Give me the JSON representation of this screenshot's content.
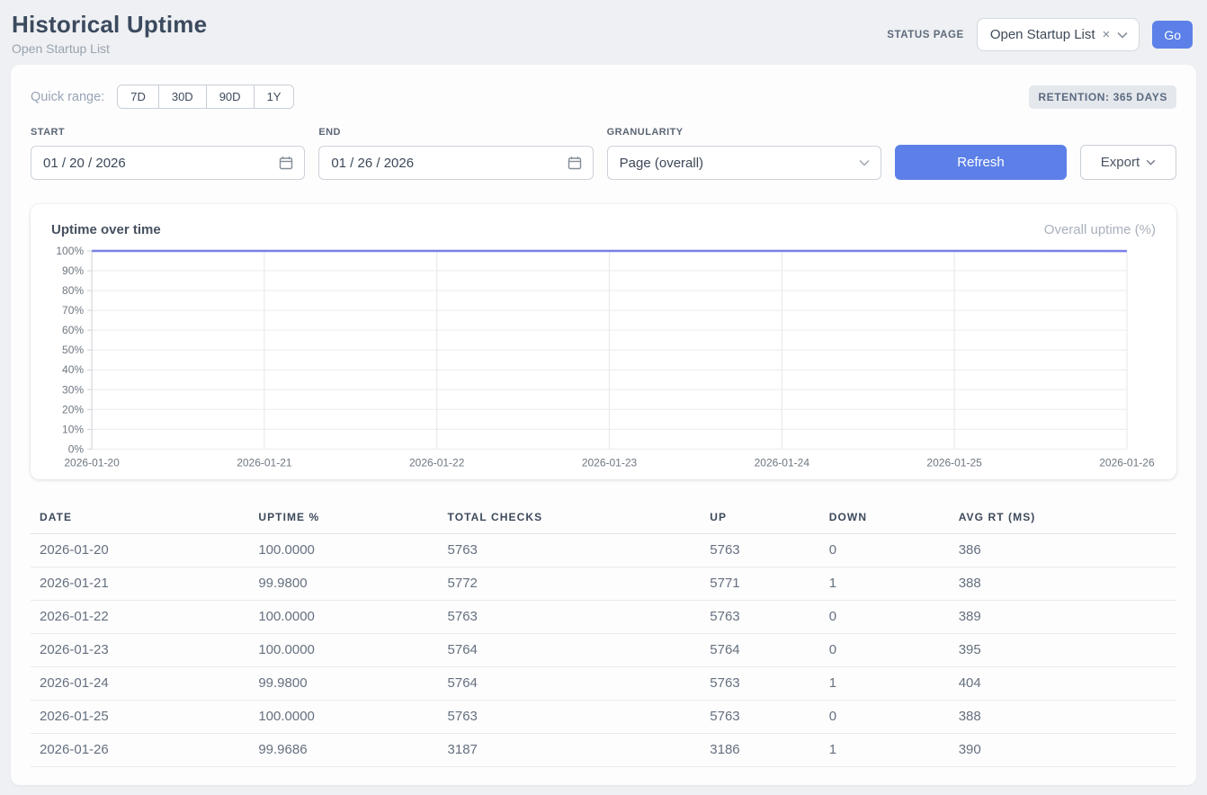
{
  "header": {
    "title": "Historical Uptime",
    "subtitle": "Open Startup List",
    "status_page_label": "STATUS PAGE",
    "status_page_value": "Open Startup List",
    "status_page_clear": "×",
    "go_label": "Go"
  },
  "controls": {
    "quick_range_label": "Quick range:",
    "quick_ranges": [
      "7D",
      "30D",
      "90D",
      "1Y"
    ],
    "retention_badge": "RETENTION: 365 DAYS",
    "start_label": "START",
    "start_value": "01 / 20 / 2026",
    "end_label": "END",
    "end_value": "01 / 26 / 2026",
    "granularity_label": "GRANULARITY",
    "granularity_value": "Page (overall)",
    "refresh_label": "Refresh",
    "export_label": "Export"
  },
  "chart": {
    "title": "Uptime over time",
    "legend": "Overall uptime (%)"
  },
  "chart_data": {
    "type": "line",
    "title": "Uptime over time",
    "x": [
      "2026-01-20",
      "2026-01-21",
      "2026-01-22",
      "2026-01-23",
      "2026-01-24",
      "2026-01-25",
      "2026-01-26"
    ],
    "series": [
      {
        "name": "Overall uptime (%)",
        "values": [
          100.0,
          99.98,
          100.0,
          100.0,
          99.98,
          100.0,
          99.9686
        ]
      }
    ],
    "ylim": [
      0,
      100
    ],
    "yticks": [
      0,
      10,
      20,
      30,
      40,
      50,
      60,
      70,
      80,
      90,
      100
    ],
    "ytick_suffix": "%",
    "grid": true,
    "legend_position": "top-right",
    "line_color": "#7b80e8"
  },
  "table": {
    "columns": [
      "DATE",
      "UPTIME %",
      "TOTAL CHECKS",
      "UP",
      "DOWN",
      "AVG RT (MS)"
    ],
    "rows": [
      [
        "2026-01-20",
        "100.0000",
        "5763",
        "5763",
        "0",
        "386"
      ],
      [
        "2026-01-21",
        "99.9800",
        "5772",
        "5771",
        "1",
        "388"
      ],
      [
        "2026-01-22",
        "100.0000",
        "5763",
        "5763",
        "0",
        "389"
      ],
      [
        "2026-01-23",
        "100.0000",
        "5764",
        "5764",
        "0",
        "395"
      ],
      [
        "2026-01-24",
        "99.9800",
        "5764",
        "5763",
        "1",
        "404"
      ],
      [
        "2026-01-25",
        "100.0000",
        "5763",
        "5763",
        "0",
        "388"
      ],
      [
        "2026-01-26",
        "99.9686",
        "3187",
        "3186",
        "1",
        "390"
      ]
    ]
  },
  "colors": {
    "accent": "#5c80e8",
    "chart_line": "#7b80e8",
    "grid_h": "#ececee",
    "grid_v": "#e6e7ea",
    "axis": "#cfd3d8"
  }
}
